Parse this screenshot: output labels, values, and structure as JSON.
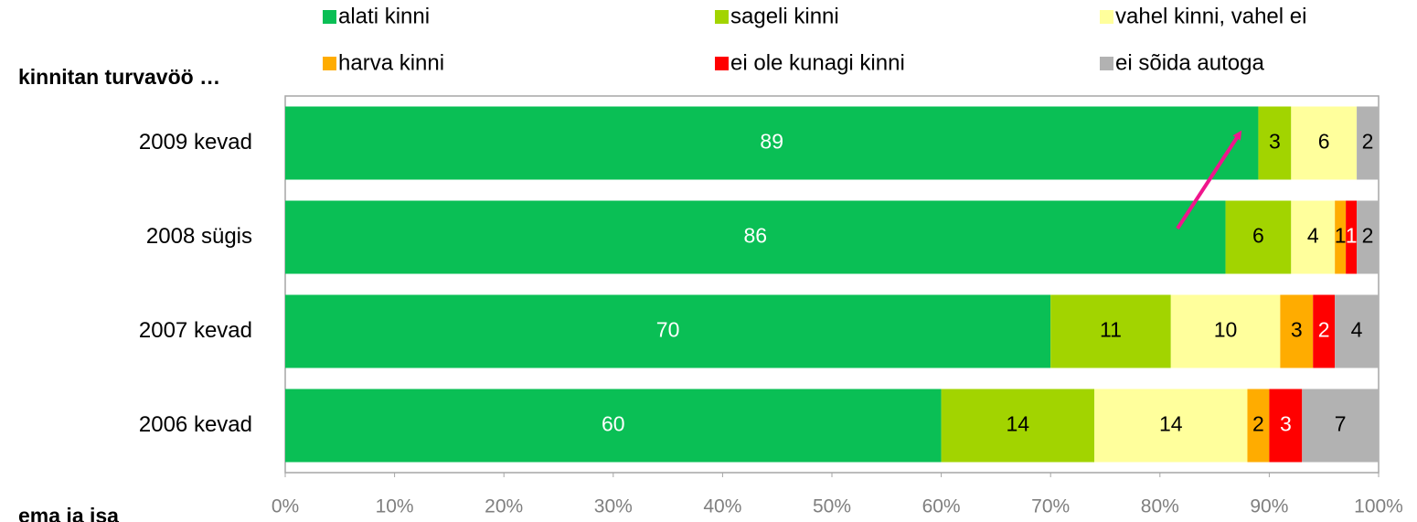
{
  "chart_data": {
    "type": "stacked-bar-horizontal",
    "title": "kinnitan turvavöö …",
    "annotations": [
      "ema ja isa"
    ],
    "categories": [
      "2009 kevad",
      "2008 sügis",
      "2007 kevad",
      "2006 kevad"
    ],
    "series": [
      {
        "name": "alati kinni",
        "color": "#0abf55",
        "label_color": "#ffffff",
        "values": [
          89,
          86,
          70,
          60
        ]
      },
      {
        "name": "sageli kinni",
        "color": "#a2d400",
        "label_color": "#000000",
        "values": [
          3,
          6,
          11,
          14
        ]
      },
      {
        "name": "vahel kinni, vahel ei",
        "color": "#ffff9c",
        "label_color": "#000000",
        "values": [
          6,
          4,
          10,
          14
        ]
      },
      {
        "name": "harva kinni",
        "color": "#ffac00",
        "label_color": "#000000",
        "values": [
          null,
          1,
          3,
          2
        ]
      },
      {
        "name": "ei ole kunagi kinni",
        "color": "#ff0000",
        "label_color": "#ffffff",
        "values": [
          null,
          1,
          2,
          3
        ]
      },
      {
        "name": "ei sõida autoga",
        "color": "#b2b2b2",
        "label_color": "#000000",
        "values": [
          2,
          2,
          4,
          7
        ]
      }
    ],
    "xlim": [
      0,
      100
    ],
    "xticks": [
      {
        "value": 0,
        "label": "0%"
      },
      {
        "value": 10,
        "label": "10%"
      },
      {
        "value": 20,
        "label": "20%"
      },
      {
        "value": 30,
        "label": "30%"
      },
      {
        "value": 40,
        "label": "40%"
      },
      {
        "value": 50,
        "label": "50%"
      },
      {
        "value": 60,
        "label": "60%"
      },
      {
        "value": 70,
        "label": "70%"
      },
      {
        "value": 80,
        "label": "80%"
      },
      {
        "value": 90,
        "label": "90%"
      },
      {
        "value": 100,
        "label": "100%"
      }
    ],
    "legend": "top"
  }
}
